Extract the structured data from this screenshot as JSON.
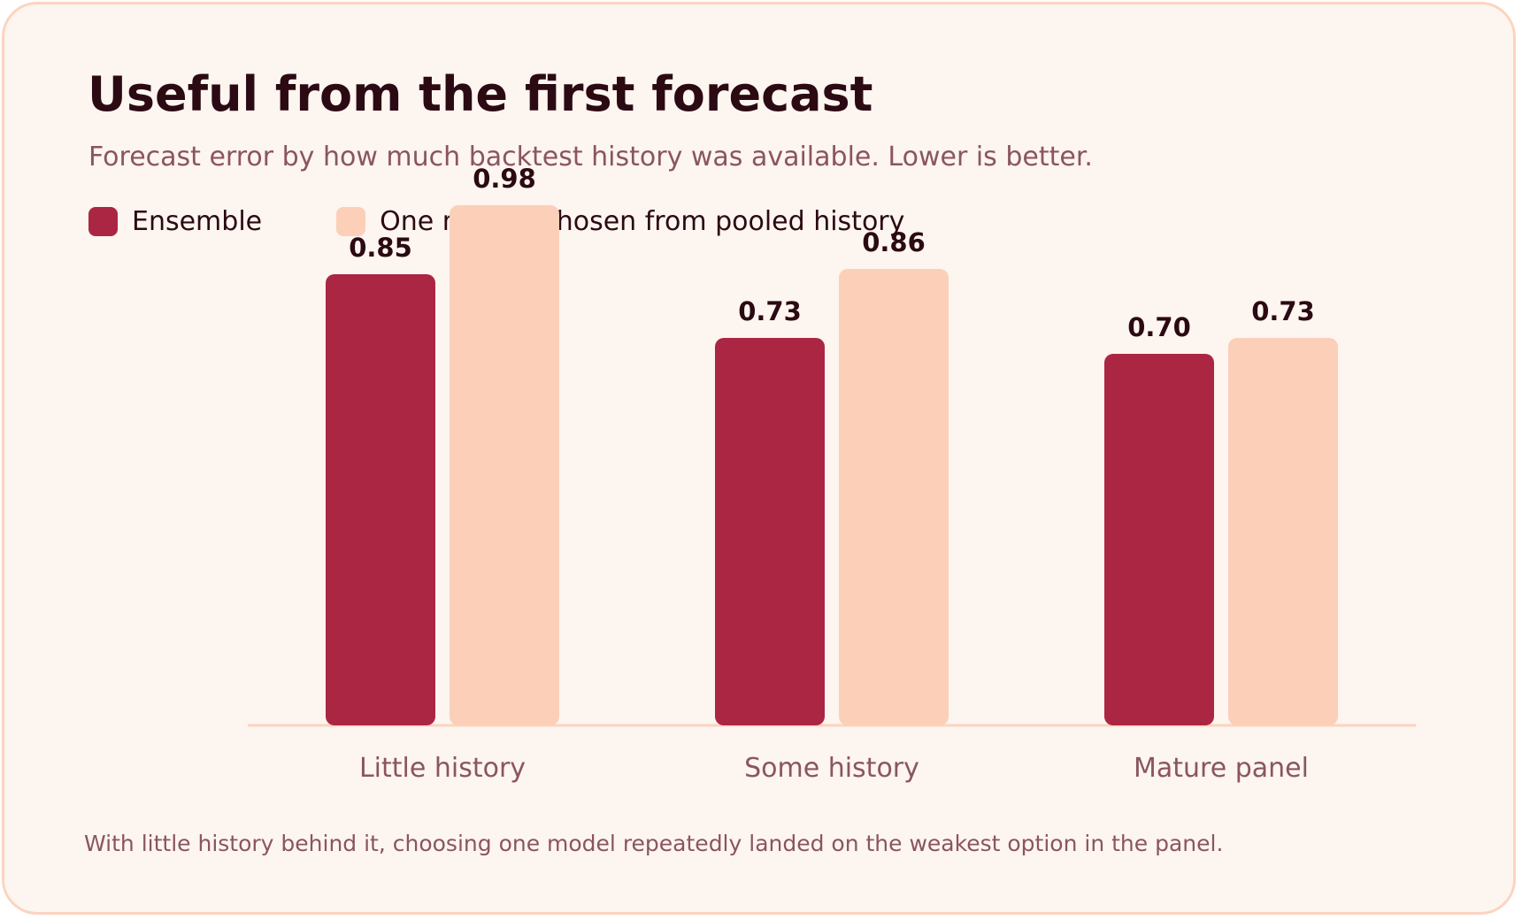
{
  "colors": {
    "ensemble": "#ab2643",
    "single_model": "#fccfb9",
    "baseline": "#fbd4c0",
    "title": "#2b0a14",
    "muted": "#8a5561"
  },
  "chart_data": {
    "type": "bar",
    "title": "Useful from the first forecast",
    "subtitle": "Forecast error by how much backtest history was available. Lower is better.",
    "categories": [
      "Little history",
      "Some history",
      "Mature panel"
    ],
    "series": [
      {
        "name": "Ensemble",
        "values": [
          0.85,
          0.73,
          0.7
        ],
        "labels": [
          "0.85",
          "0.73",
          "0.70"
        ]
      },
      {
        "name": "One model, chosen from pooled history",
        "values": [
          0.98,
          0.86,
          0.73
        ],
        "labels": [
          "0.98",
          "0.86",
          "0.73"
        ]
      }
    ],
    "ylim": [
      0,
      1.0
    ],
    "grid": false,
    "legend": "top-left",
    "data_labels": true,
    "note": "With little history behind it, choosing one model repeatedly landed on the weakest option in the panel."
  }
}
